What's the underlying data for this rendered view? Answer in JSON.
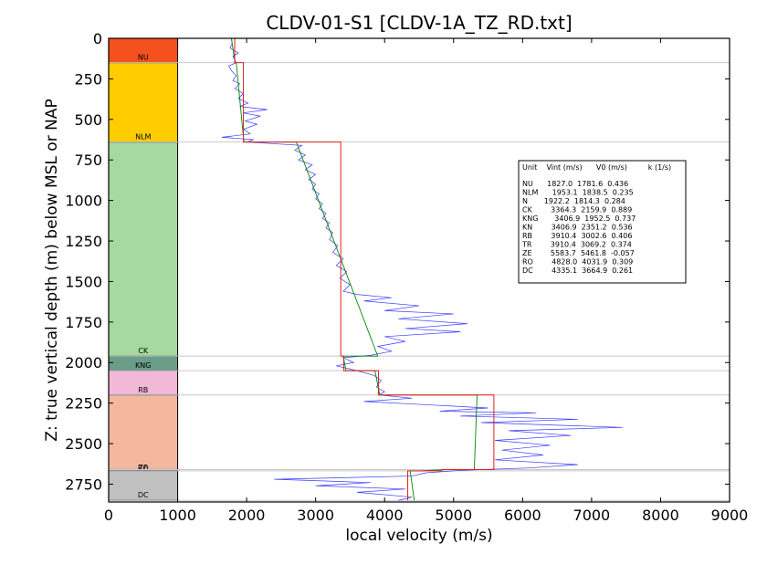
{
  "chart_data": {
    "type": "line",
    "title": "CLDV-01-S1 [CLDV-1A_TZ_RD.txt]",
    "xlabel": "local velocity (m/s)",
    "ylabel": "Z: true vertical depth (m) below MSL or NAP",
    "xlim": [
      0,
      9000
    ],
    "ylim": [
      2860,
      0
    ],
    "x_ticks": [
      "0",
      "1000",
      "2000",
      "3000",
      "4000",
      "5000",
      "6000",
      "7000",
      "8000",
      "9000"
    ],
    "y_ticks": [
      "0",
      "250",
      "500",
      "750",
      "1000",
      "1250",
      "1500",
      "1750",
      "2000",
      "2250",
      "2500",
      "2750"
    ],
    "grid": false,
    "strat_column": {
      "x_range": [
        0,
        1000
      ],
      "units": [
        {
          "name": "NU",
          "top": 0,
          "base": 150,
          "color": "#f4511e"
        },
        {
          "name": "NLM",
          "top": 150,
          "base": 640,
          "color": "#ffcc00"
        },
        {
          "name": "CK",
          "top": 640,
          "base": 1960,
          "color": "#a6d9a0"
        },
        {
          "name": "KNG",
          "top": 1960,
          "base": 2050,
          "color": "#6a9e88"
        },
        {
          "name": "RB",
          "top": 2050,
          "base": 2200,
          "color": "#f2b8d8"
        },
        {
          "name": "",
          "top": 2200,
          "base": 2660,
          "color": "#f4b8a0"
        },
        {
          "name": "",
          "top": 2660,
          "base": 2668,
          "color": "#4a5a8a"
        },
        {
          "name": "DC",
          "top": 2668,
          "base": 2850,
          "color": "#c0c0c0"
        }
      ],
      "overlap_labels": [
        "ZE",
        "RO"
      ]
    },
    "boundaries": [
      150,
      640,
      1960,
      2050,
      2200,
      2660,
      2668,
      2850
    ],
    "interval_velocity": {
      "color": "#e02020",
      "segments": [
        {
          "top": 0,
          "base": 150,
          "v": 1827.0
        },
        {
          "top": 150,
          "base": 640,
          "v": 1953.1
        },
        {
          "top": 640,
          "base": 1960,
          "v": 3364.3
        },
        {
          "top": 1960,
          "base": 2050,
          "v": 3406.9
        },
        {
          "top": 2050,
          "base": 2200,
          "v": 3910.4
        },
        {
          "top": 2200,
          "base": 2660,
          "v": 5583.7
        },
        {
          "top": 2660,
          "base": 2668,
          "v": 4828.0
        },
        {
          "top": 2668,
          "base": 2850,
          "v": 4335.1
        }
      ]
    },
    "model_velocity": {
      "color": "#008800",
      "points": [
        [
          1780,
          0
        ],
        [
          1830,
          150
        ],
        [
          1850,
          150
        ],
        [
          1960,
          640
        ],
        [
          2720,
          640
        ],
        [
          3900,
          1960
        ],
        [
          3400,
          1960
        ],
        [
          3440,
          2050
        ],
        [
          3860,
          2050
        ],
        [
          3930,
          2200
        ],
        [
          5340,
          2200
        ],
        [
          5300,
          2660
        ],
        [
          4900,
          2660
        ],
        [
          4520,
          2668
        ],
        [
          4370,
          2668
        ],
        [
          4430,
          2850
        ]
      ]
    },
    "log_velocity": {
      "color": "#3a3aff",
      "points": [
        [
          1780,
          0
        ],
        [
          1790,
          30
        ],
        [
          1760,
          60
        ],
        [
          1880,
          90
        ],
        [
          1800,
          110
        ],
        [
          1850,
          150
        ],
        [
          1740,
          170
        ],
        [
          1780,
          200
        ],
        [
          1850,
          230
        ],
        [
          1800,
          260
        ],
        [
          1900,
          280
        ],
        [
          1830,
          310
        ],
        [
          1950,
          340
        ],
        [
          1880,
          370
        ],
        [
          2020,
          400
        ],
        [
          1900,
          420
        ],
        [
          2300,
          440
        ],
        [
          1950,
          460
        ],
        [
          2200,
          480
        ],
        [
          1980,
          510
        ],
        [
          2150,
          530
        ],
        [
          1960,
          560
        ],
        [
          2050,
          590
        ],
        [
          1640,
          610
        ],
        [
          2100,
          625
        ],
        [
          2000,
          640
        ],
        [
          2800,
          660
        ],
        [
          2700,
          690
        ],
        [
          2850,
          720
        ],
        [
          2750,
          750
        ],
        [
          2950,
          780
        ],
        [
          2850,
          810
        ],
        [
          3000,
          840
        ],
        [
          2900,
          870
        ],
        [
          3000,
          900
        ],
        [
          2950,
          930
        ],
        [
          3050,
          960
        ],
        [
          3000,
          990
        ],
        [
          3100,
          1020
        ],
        [
          3050,
          1050
        ],
        [
          3150,
          1080
        ],
        [
          3100,
          1110
        ],
        [
          3200,
          1140
        ],
        [
          3150,
          1170
        ],
        [
          3250,
          1200
        ],
        [
          3200,
          1240
        ],
        [
          3320,
          1280
        ],
        [
          3250,
          1320
        ],
        [
          3400,
          1360
        ],
        [
          3300,
          1400
        ],
        [
          3450,
          1440
        ],
        [
          3350,
          1480
        ],
        [
          3500,
          1520
        ],
        [
          3400,
          1560
        ],
        [
          3600,
          1580
        ],
        [
          4100,
          1600
        ],
        [
          3700,
          1620
        ],
        [
          4500,
          1650
        ],
        [
          4000,
          1680
        ],
        [
          5000,
          1700
        ],
        [
          4200,
          1730
        ],
        [
          5200,
          1760
        ],
        [
          4300,
          1790
        ],
        [
          5100,
          1810
        ],
        [
          4000,
          1840
        ],
        [
          4300,
          1870
        ],
        [
          3900,
          1900
        ],
        [
          4100,
          1930
        ],
        [
          3800,
          1955
        ],
        [
          3400,
          1970
        ],
        [
          3550,
          2000
        ],
        [
          3300,
          2020
        ],
        [
          3600,
          2050
        ],
        [
          3850,
          2080
        ],
        [
          3950,
          2110
        ],
        [
          3880,
          2150
        ],
        [
          4000,
          2180
        ],
        [
          3920,
          2200
        ],
        [
          4400,
          2220
        ],
        [
          3700,
          2240
        ],
        [
          4600,
          2260
        ],
        [
          5500,
          2280
        ],
        [
          4800,
          2300
        ],
        [
          6200,
          2310
        ],
        [
          5100,
          2330
        ],
        [
          6800,
          2350
        ],
        [
          5400,
          2370
        ],
        [
          7450,
          2400
        ],
        [
          5800,
          2420
        ],
        [
          6700,
          2450
        ],
        [
          5600,
          2480
        ],
        [
          6400,
          2510
        ],
        [
          5700,
          2540
        ],
        [
          6300,
          2570
        ],
        [
          5600,
          2600
        ],
        [
          6800,
          2630
        ],
        [
          6100,
          2650
        ],
        [
          5100,
          2665
        ],
        [
          4600,
          2680
        ],
        [
          4400,
          2700
        ],
        [
          2400,
          2720
        ],
        [
          3800,
          2740
        ],
        [
          3000,
          2760
        ],
        [
          4300,
          2780
        ],
        [
          3600,
          2800
        ],
        [
          4400,
          2830
        ],
        [
          4200,
          2850
        ]
      ]
    },
    "table": {
      "header": "Unit    Vint (m/s)      V0 (m/s)         k (1/s)",
      "rows": [
        "NU      1827.0  1781.6  0.436",
        "NLM      1953.1  1838.5  0.235",
        "N       1922.2  1814.3  0.284",
        "CK        3364.3  2159.9  0.889",
        "KNG       3406.9  1952.5  0.737",
        "KN        3406.9  2351.2  0.536",
        "RB        3910.4  3002.6  0.406",
        "TR        3910.4  3069.2  0.374",
        "ZE        5583.7  5461.8  -0.057",
        "RO        4828.0  4031.9  0.309",
        "DC        4335.1  3664.9  0.261"
      ]
    }
  }
}
